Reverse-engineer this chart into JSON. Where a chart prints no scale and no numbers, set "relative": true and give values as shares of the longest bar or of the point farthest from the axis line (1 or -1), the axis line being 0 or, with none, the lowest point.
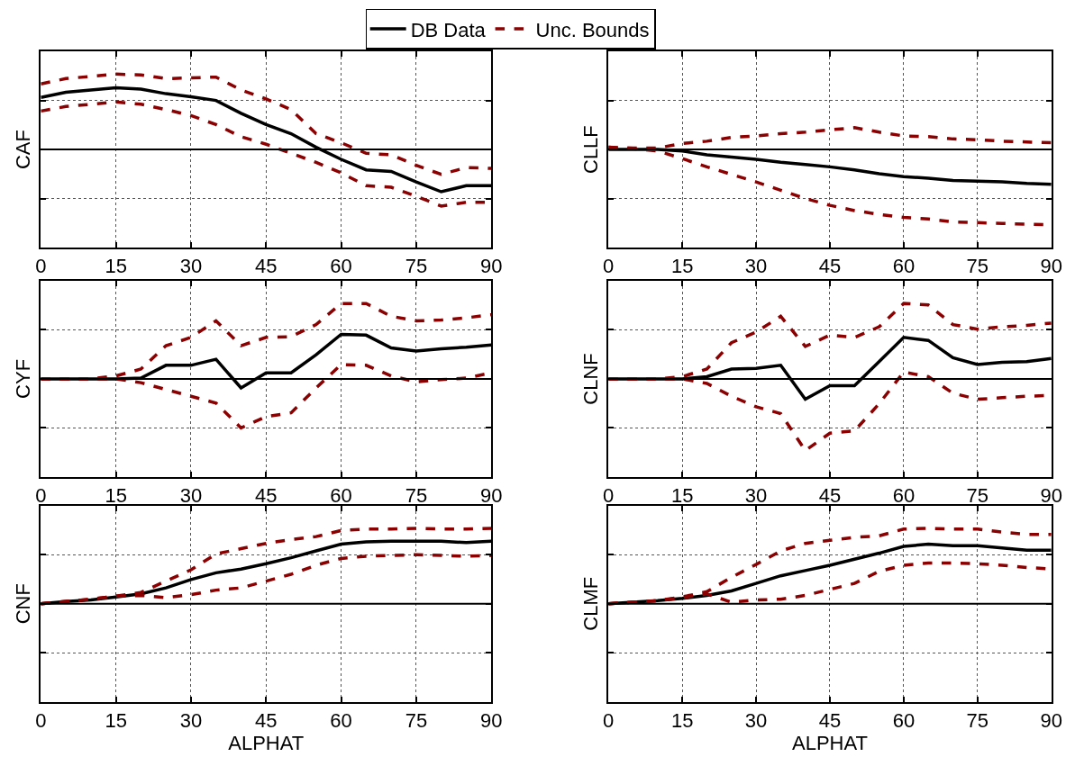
{
  "chart_data": [
    {
      "type": "line",
      "ylabel": "CAF",
      "x": [
        0,
        5,
        10,
        15,
        20,
        25,
        30,
        35,
        40,
        45,
        50,
        55,
        60,
        65,
        70,
        75,
        80,
        85,
        90
      ],
      "xlim": [
        0,
        90
      ],
      "xticks": [
        0,
        15,
        30,
        45,
        60,
        75,
        90
      ],
      "relative": true,
      "grid": true,
      "legend": "top",
      "tick_labels": "x",
      "ref_lines": [
        {
          "axis": "y",
          "value": 0,
          "color": "#000000"
        }
      ],
      "series": [
        {
          "name": "DB Data",
          "color": "#000000",
          "line_style": "solid",
          "values": [
            0.69,
            0.76,
            0.79,
            0.82,
            0.8,
            0.74,
            0.7,
            0.65,
            0.48,
            0.33,
            0.21,
            0.03,
            -0.13,
            -0.27,
            -0.29,
            -0.43,
            -0.56,
            -0.48,
            -0.48
          ]
        },
        {
          "name": "Unc. Bounds",
          "color": "#8b0000",
          "line_style": "dashed",
          "values": [
            0.87,
            0.94,
            0.97,
            1.0,
            0.99,
            0.94,
            0.95,
            0.96,
            0.79,
            0.67,
            0.53,
            0.21,
            0.09,
            -0.05,
            -0.07,
            -0.21,
            -0.33,
            -0.24,
            -0.25
          ]
        },
        {
          "color": "#8b0000",
          "line_style": "dashed",
          "values": [
            0.51,
            0.57,
            0.6,
            0.63,
            0.6,
            0.53,
            0.45,
            0.33,
            0.17,
            0.07,
            -0.05,
            -0.17,
            -0.31,
            -0.48,
            -0.5,
            -0.62,
            -0.75,
            -0.7,
            -0.7
          ]
        }
      ]
    },
    {
      "type": "line",
      "ylabel": "CLLF",
      "x": [
        0,
        5,
        10,
        15,
        20,
        25,
        30,
        35,
        40,
        45,
        50,
        55,
        60,
        65,
        70,
        75,
        80,
        85,
        90
      ],
      "xlim": [
        0,
        90
      ],
      "xticks": [
        0,
        15,
        30,
        45,
        60,
        75,
        90
      ],
      "relative": true,
      "grid": true,
      "legend": "top",
      "tick_labels": "x",
      "ref_lines": [
        {
          "axis": "y",
          "value": 0,
          "color": "#000000"
        }
      ],
      "series": [
        {
          "name": "DB Data",
          "color": "#000000",
          "line_style": "solid",
          "values": [
            0,
            0,
            0,
            -0.02,
            -0.07,
            -0.1,
            -0.13,
            -0.17,
            -0.2,
            -0.23,
            -0.27,
            -0.32,
            -0.36,
            -0.38,
            -0.41,
            -0.42,
            -0.43,
            -0.45,
            -0.46
          ]
        },
        {
          "name": "Unc. Bounds",
          "color": "#8b0000",
          "line_style": "dashed",
          "values": [
            0.03,
            0.02,
            0.02,
            0.08,
            0.11,
            0.16,
            0.18,
            0.21,
            0.23,
            0.26,
            0.29,
            0.23,
            0.18,
            0.17,
            0.14,
            0.13,
            0.11,
            0.1,
            0.09
          ]
        },
        {
          "color": "#8b0000",
          "line_style": "dashed",
          "values": [
            0.03,
            0.01,
            -0.02,
            -0.12,
            -0.23,
            -0.33,
            -0.43,
            -0.54,
            -0.65,
            -0.74,
            -0.81,
            -0.86,
            -0.9,
            -0.92,
            -0.96,
            -0.97,
            -0.98,
            -0.99,
            -1.0
          ]
        }
      ]
    },
    {
      "type": "line",
      "ylabel": "CYF",
      "x": [
        0,
        5,
        10,
        15,
        20,
        25,
        30,
        35,
        40,
        45,
        50,
        55,
        60,
        65,
        70,
        75,
        80,
        85,
        90
      ],
      "xlim": [
        0,
        90
      ],
      "xticks": [
        0,
        15,
        30,
        45,
        60,
        75,
        90
      ],
      "relative": true,
      "grid": true,
      "legend": "top",
      "tick_labels": "x",
      "ref_lines": [
        {
          "axis": "y",
          "value": 0,
          "color": "#000000"
        }
      ],
      "series": [
        {
          "name": "DB Data",
          "color": "#000000",
          "line_style": "solid",
          "values": [
            0,
            0,
            0,
            0,
            0.01,
            0.18,
            0.18,
            0.26,
            -0.12,
            0.08,
            0.08,
            0.32,
            0.59,
            0.58,
            0.41,
            0.37,
            0.4,
            0.42,
            0.45
          ]
        },
        {
          "name": "Unc. Bounds",
          "color": "#8b0000",
          "line_style": "dashed",
          "values": [
            0,
            0,
            0,
            0.04,
            0.13,
            0.44,
            0.55,
            0.77,
            0.44,
            0.55,
            0.56,
            0.72,
            1.0,
            1.0,
            0.83,
            0.77,
            0.78,
            0.81,
            0.85
          ]
        },
        {
          "color": "#8b0000",
          "line_style": "dashed",
          "values": [
            0,
            0,
            0,
            0,
            -0.05,
            -0.14,
            -0.23,
            -0.32,
            -0.65,
            -0.5,
            -0.45,
            -0.12,
            0.19,
            0.18,
            0.04,
            -0.04,
            -0.01,
            0.01,
            0.08
          ]
        }
      ]
    },
    {
      "type": "line",
      "ylabel": "CLNF",
      "x": [
        0,
        5,
        10,
        15,
        20,
        25,
        30,
        35,
        40,
        45,
        50,
        55,
        60,
        65,
        70,
        75,
        80,
        85,
        90
      ],
      "xlim": [
        0,
        90
      ],
      "xticks": [
        0,
        15,
        30,
        45,
        60,
        75,
        90
      ],
      "relative": true,
      "grid": true,
      "legend": "top",
      "tick_labels": "x",
      "ref_lines": [
        {
          "axis": "y",
          "value": 0,
          "color": "#000000"
        }
      ],
      "series": [
        {
          "name": "DB Data",
          "color": "#000000",
          "line_style": "solid",
          "values": [
            0,
            0,
            0,
            0,
            0.03,
            0.13,
            0.14,
            0.18,
            -0.27,
            -0.09,
            -0.09,
            0.23,
            0.55,
            0.51,
            0.28,
            0.19,
            0.22,
            0.23,
            0.27
          ]
        },
        {
          "name": "Unc. Bounds",
          "color": "#8b0000",
          "line_style": "dashed",
          "values": [
            0,
            0,
            0,
            0.03,
            0.13,
            0.48,
            0.62,
            0.83,
            0.43,
            0.58,
            0.55,
            0.69,
            1.0,
            0.98,
            0.72,
            0.66,
            0.69,
            0.71,
            0.74
          ]
        },
        {
          "color": "#8b0000",
          "line_style": "dashed",
          "values": [
            0,
            0,
            0,
            0,
            -0.06,
            -0.23,
            -0.37,
            -0.46,
            -0.95,
            -0.72,
            -0.69,
            -0.33,
            0.09,
            0.03,
            -0.19,
            -0.27,
            -0.25,
            -0.23,
            -0.22
          ]
        }
      ]
    },
    {
      "type": "line",
      "ylabel": "CNF",
      "xlabel": "ALPHAT",
      "x": [
        0,
        5,
        10,
        15,
        20,
        25,
        30,
        35,
        40,
        45,
        50,
        55,
        60,
        65,
        70,
        75,
        80,
        85,
        90
      ],
      "xlim": [
        0,
        90
      ],
      "xticks": [
        0,
        15,
        30,
        45,
        60,
        75,
        90
      ],
      "relative": true,
      "grid": true,
      "legend": "top",
      "tick_labels": "x",
      "ref_lines": [
        {
          "axis": "y",
          "value": 0,
          "color": "#000000"
        }
      ],
      "series": [
        {
          "name": "DB Data",
          "color": "#000000",
          "line_style": "solid",
          "values": [
            0,
            0.03,
            0.05,
            0.09,
            0.13,
            0.21,
            0.32,
            0.41,
            0.46,
            0.53,
            0.61,
            0.7,
            0.79,
            0.82,
            0.83,
            0.83,
            0.83,
            0.81,
            0.83
          ]
        },
        {
          "name": "Unc. Bounds",
          "color": "#8b0000",
          "line_style": "dashed",
          "values": [
            0,
            0.03,
            0.06,
            0.1,
            0.15,
            0.3,
            0.45,
            0.66,
            0.73,
            0.8,
            0.85,
            0.89,
            0.97,
            0.99,
            0.99,
            1.0,
            0.99,
            0.99,
            1.0
          ]
        },
        {
          "color": "#8b0000",
          "line_style": "dashed",
          "values": [
            0,
            0.03,
            0.06,
            0.1,
            0.11,
            0.08,
            0.12,
            0.18,
            0.21,
            0.3,
            0.39,
            0.51,
            0.6,
            0.63,
            0.64,
            0.65,
            0.64,
            0.63,
            0.64
          ]
        }
      ]
    },
    {
      "type": "line",
      "ylabel": "CLMF",
      "xlabel": "ALPHAT",
      "x": [
        0,
        5,
        10,
        15,
        20,
        25,
        30,
        35,
        40,
        45,
        50,
        55,
        60,
        65,
        70,
        75,
        80,
        85,
        90
      ],
      "xlim": [
        0,
        90
      ],
      "xticks": [
        0,
        15,
        30,
        45,
        60,
        75,
        90
      ],
      "relative": true,
      "grid": true,
      "legend": "top",
      "tick_labels": "x",
      "ref_lines": [
        {
          "axis": "y",
          "value": 0,
          "color": "#000000"
        }
      ],
      "series": [
        {
          "name": "DB Data",
          "color": "#000000",
          "line_style": "solid",
          "values": [
            0,
            0.02,
            0.04,
            0.07,
            0.11,
            0.17,
            0.27,
            0.37,
            0.44,
            0.51,
            0.59,
            0.67,
            0.76,
            0.79,
            0.77,
            0.77,
            0.74,
            0.71,
            0.71
          ]
        },
        {
          "name": "Unc. Bounds",
          "color": "#8b0000",
          "line_style": "dashed",
          "values": [
            0,
            0.02,
            0.04,
            0.09,
            0.16,
            0.35,
            0.52,
            0.7,
            0.8,
            0.84,
            0.88,
            0.9,
            0.99,
            1.0,
            0.99,
            0.99,
            0.95,
            0.92,
            0.92
          ]
        },
        {
          "color": "#8b0000",
          "line_style": "dashed",
          "values": [
            0,
            0.02,
            0.04,
            0.08,
            0.13,
            0.02,
            0.05,
            0.06,
            0.11,
            0.19,
            0.27,
            0.43,
            0.51,
            0.54,
            0.54,
            0.53,
            0.51,
            0.48,
            0.46
          ]
        }
      ]
    }
  ]
}
